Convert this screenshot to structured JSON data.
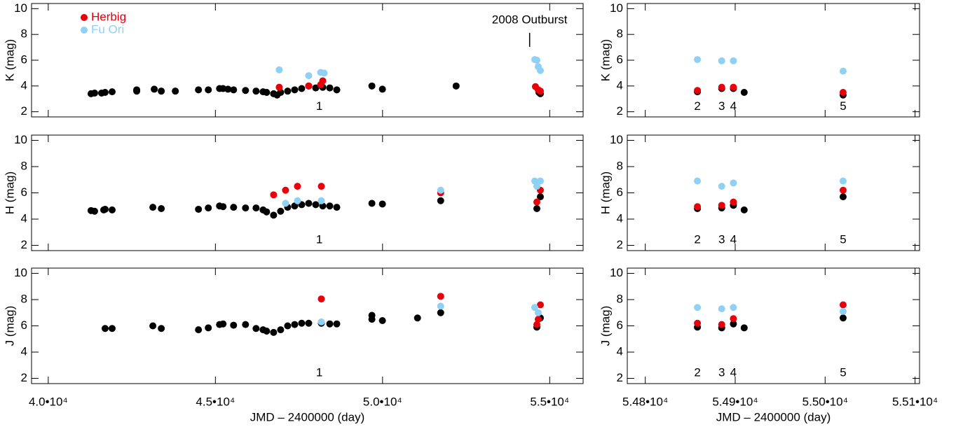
{
  "chart_data": [
    {
      "type": "scatter",
      "ylabel": "K (mag)",
      "xlim": [
        39500,
        56000
      ],
      "ylim": [
        1.6,
        10.4
      ],
      "yticks": [
        2,
        4,
        6,
        8,
        10
      ],
      "legend": "upper left",
      "series": [
        {
          "color": "#000000",
          "x": [
            41281,
            41386,
            41596,
            41701,
            41911,
            42646,
            42646,
            43171,
            43381,
            43801,
            44494,
            44788,
            45124,
            45229,
            45376,
            45544,
            45901,
            46216,
            46426,
            46531,
            46741,
            46846,
            46951,
            47161,
            47371,
            47581,
            47791,
            48001,
            48211,
            48421,
            48631,
            49681,
            49996,
            52201,
            54679,
            54721
          ],
          "values": [
            3.4,
            3.45,
            3.45,
            3.5,
            3.55,
            3.6,
            3.7,
            3.75,
            3.6,
            3.6,
            3.7,
            3.7,
            3.8,
            3.8,
            3.75,
            3.7,
            3.65,
            3.6,
            3.55,
            3.5,
            3.4,
            3.3,
            3.5,
            3.6,
            3.7,
            3.8,
            4.0,
            3.85,
            3.9,
            3.85,
            3.7,
            4.0,
            3.75,
            4.0,
            3.5,
            3.4
          ]
        },
        {
          "name": "Herbig",
          "color": "#e8000b",
          "x": [
            46909,
            47791,
            48148,
            48211,
            54574,
            54658,
            54721
          ],
          "values": [
            3.9,
            4.0,
            4.1,
            4.4,
            3.95,
            3.7,
            3.6
          ]
        },
        {
          "name": "Fu Ori",
          "color": "#8fd0f5",
          "x": [
            46909,
            47791,
            48148,
            48253,
            54553,
            54616,
            54721,
            54658
          ],
          "values": [
            5.25,
            4.8,
            5.05,
            5.0,
            6.05,
            6.0,
            5.2,
            5.5
          ]
        }
      ],
      "annotations": [
        {
          "text": "1",
          "x": 48110,
          "y": 2.4
        },
        {
          "text": "2008 Outburst",
          "x": 54400,
          "y": 9.1
        }
      ]
    },
    {
      "type": "scatter",
      "ylabel": "K (mag)",
      "xlim": [
        54780,
        55105
      ],
      "ylim": [
        1.6,
        10.4
      ],
      "yticks": [
        2,
        4,
        6,
        8,
        10
      ],
      "series": [
        {
          "color": "#000000",
          "x": [
            54858,
            54885,
            54898,
            54910,
            55020
          ],
          "values": [
            3.55,
            3.8,
            3.8,
            3.5,
            3.3
          ]
        },
        {
          "color": "#e8000b",
          "x": [
            54858,
            54885,
            54898,
            55020
          ],
          "values": [
            3.65,
            3.9,
            3.9,
            3.5
          ]
        },
        {
          "color": "#8fd0f5",
          "x": [
            54858,
            54885,
            54898,
            55020
          ],
          "values": [
            6.05,
            5.95,
            5.95,
            5.15
          ]
        }
      ],
      "annotations": [
        {
          "text": "2",
          "x": 54858,
          "y": 2.4
        },
        {
          "text": "3",
          "x": 54885,
          "y": 2.4
        },
        {
          "text": "4",
          "x": 54898,
          "y": 2.4
        },
        {
          "text": "5",
          "x": 55020,
          "y": 2.4
        }
      ]
    },
    {
      "type": "scatter",
      "ylabel": "H (mag)",
      "xlim": [
        39500,
        56000
      ],
      "ylim": [
        1.6,
        10.4
      ],
      "yticks": [
        2,
        4,
        6,
        8,
        10
      ],
      "series": [
        {
          "color": "#000000",
          "x": [
            41281,
            41386,
            41659,
            41701,
            41911,
            43129,
            43381,
            44494,
            44788,
            45124,
            45229,
            45544,
            45901,
            46216,
            46426,
            46531,
            46741,
            46951,
            47161,
            47371,
            47581,
            47791,
            48001,
            48211,
            48421,
            48631,
            49681,
            49996,
            51739,
            54616,
            54721
          ],
          "values": [
            4.65,
            4.6,
            4.7,
            4.75,
            4.7,
            4.9,
            4.8,
            4.75,
            4.85,
            5.0,
            4.95,
            4.9,
            4.85,
            4.85,
            4.7,
            4.55,
            4.3,
            4.6,
            4.9,
            5.0,
            5.1,
            5.2,
            5.1,
            5.0,
            5.0,
            4.9,
            5.2,
            5.15,
            5.4,
            4.8,
            5.7
          ]
        },
        {
          "color": "#e8000b",
          "x": [
            46741,
            47098,
            47455,
            48169,
            51739,
            54616,
            54721
          ],
          "values": [
            5.85,
            6.2,
            6.5,
            6.5,
            6.0,
            5.3,
            6.2
          ]
        },
        {
          "color": "#8fd0f5",
          "x": [
            47098,
            47455,
            48169,
            51739,
            54553,
            54616,
            54721
          ],
          "values": [
            5.2,
            5.4,
            5.4,
            6.2,
            6.9,
            6.5,
            6.9
          ]
        }
      ],
      "annotations": [
        {
          "text": "1",
          "x": 48110,
          "y": 2.4
        }
      ]
    },
    {
      "type": "scatter",
      "ylabel": "H (mag)",
      "xlim": [
        54780,
        55105
      ],
      "ylim": [
        1.6,
        10.4
      ],
      "yticks": [
        2,
        4,
        6,
        8,
        10
      ],
      "series": [
        {
          "color": "#000000",
          "x": [
            54858,
            54885,
            54898,
            54910,
            55020
          ],
          "values": [
            4.8,
            4.85,
            5.05,
            4.7,
            5.7
          ]
        },
        {
          "color": "#e8000b",
          "x": [
            54858,
            54885,
            54898,
            55020
          ],
          "values": [
            4.95,
            5.05,
            5.3,
            6.2
          ]
        },
        {
          "color": "#8fd0f5",
          "x": [
            54858,
            54885,
            54898,
            55020
          ],
          "values": [
            6.9,
            6.5,
            6.75,
            6.9
          ]
        }
      ],
      "annotations": [
        {
          "text": "2",
          "x": 54858,
          "y": 2.4
        },
        {
          "text": "3",
          "x": 54885,
          "y": 2.4
        },
        {
          "text": "4",
          "x": 54898,
          "y": 2.4
        },
        {
          "text": "5",
          "x": 55020,
          "y": 2.4
        }
      ]
    },
    {
      "type": "scatter",
      "ylabel": "J (mag)",
      "xlabel": "JMD – 2400000 (day)",
      "xlim": [
        39500,
        56000
      ],
      "ylim": [
        1.6,
        10.4
      ],
      "yticks": [
        2,
        4,
        6,
        8,
        10
      ],
      "xticks": [
        {
          "value": 40000,
          "label": "4.0•10⁴"
        },
        {
          "value": 45000,
          "label": "4.5•10⁴"
        },
        {
          "value": 50000,
          "label": "5.0•10⁴"
        },
        {
          "value": 55000,
          "label": "5.5•10⁴"
        }
      ],
      "series": [
        {
          "color": "#000000",
          "x": [
            41701,
            41911,
            43129,
            43381,
            44494,
            44788,
            45124,
            45229,
            45544,
            45901,
            46216,
            46426,
            46531,
            46741,
            46951,
            47161,
            47371,
            47581,
            47791,
            48169,
            48421,
            48631,
            49681,
            49681,
            49996,
            51046,
            51739,
            54616,
            54721
          ],
          "values": [
            5.8,
            5.8,
            6.0,
            5.8,
            5.7,
            5.85,
            6.1,
            6.15,
            6.05,
            6.1,
            5.8,
            5.7,
            5.6,
            5.5,
            5.7,
            6.0,
            6.1,
            6.2,
            6.2,
            6.2,
            6.15,
            6.15,
            6.5,
            6.8,
            6.4,
            6.6,
            7.0,
            5.9,
            6.6
          ]
        },
        {
          "color": "#e8000b",
          "x": [
            48169,
            51739,
            54616,
            54658,
            54721
          ],
          "values": [
            8.05,
            8.25,
            6.1,
            6.5,
            7.6
          ]
        },
        {
          "color": "#8fd0f5",
          "x": [
            48169,
            51739,
            54553,
            54658
          ],
          "values": [
            6.3,
            7.5,
            7.4,
            7.0
          ]
        }
      ],
      "annotations": [
        {
          "text": "1",
          "x": 48110,
          "y": 2.4
        }
      ]
    },
    {
      "type": "scatter",
      "ylabel": "J (mag)",
      "xlabel": "JMD – 2400000 (day)",
      "xlim": [
        54780,
        55105
      ],
      "ylim": [
        1.6,
        10.4
      ],
      "yticks": [
        2,
        4,
        6,
        8,
        10
      ],
      "xticks": [
        {
          "value": 54800,
          "label": "5.48•10⁴"
        },
        {
          "value": 54900,
          "label": "5.49•10⁴"
        },
        {
          "value": 55000,
          "label": "5.50•10⁴"
        },
        {
          "value": 55100,
          "label": "5.51•10⁴"
        }
      ],
      "series": [
        {
          "color": "#000000",
          "x": [
            54858,
            54885,
            54898,
            54910,
            55020
          ],
          "values": [
            5.9,
            5.85,
            6.15,
            5.85,
            6.6
          ]
        },
        {
          "color": "#e8000b",
          "x": [
            54858,
            54885,
            54898,
            55020
          ],
          "values": [
            6.2,
            6.1,
            6.55,
            7.6
          ]
        },
        {
          "color": "#8fd0f5",
          "x": [
            54858,
            54885,
            54898,
            55020
          ],
          "values": [
            7.4,
            7.3,
            7.4,
            7.1
          ]
        }
      ],
      "annotations": [
        {
          "text": "2",
          "x": 54858,
          "y": 2.4
        },
        {
          "text": "3",
          "x": 54885,
          "y": 2.4
        },
        {
          "text": "4",
          "x": 54898,
          "y": 2.4
        },
        {
          "text": "5",
          "x": 55020,
          "y": 2.4
        }
      ]
    }
  ]
}
